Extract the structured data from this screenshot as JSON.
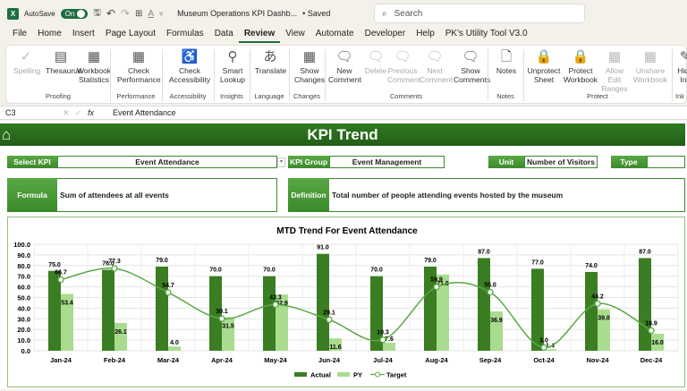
{
  "titlebar": {
    "autosave": "AutoSave",
    "toggle": "On",
    "filename": "Museum Operations KPI Dashb...",
    "saved": "• Saved",
    "search_placeholder": "Search"
  },
  "tabs": [
    "File",
    "Home",
    "Insert",
    "Page Layout",
    "Formulas",
    "Data",
    "Review",
    "View",
    "Automate",
    "Developer",
    "Help",
    "PK's Utility Tool V3.0"
  ],
  "active_tab": "Review",
  "ribbon": {
    "buttons": [
      {
        "label": "Spelling",
        "icon": "spelling-icon",
        "disabled": true
      },
      {
        "label": "Thesaurus",
        "icon": "thesaurus-icon"
      },
      {
        "label": "Workbook Statistics",
        "icon": "statistics-icon"
      },
      {
        "label": "Check Performance",
        "icon": "performance-icon"
      },
      {
        "label": "Check Accessibility",
        "icon": "accessibility-icon"
      },
      {
        "label": "Smart Lookup",
        "icon": "lookup-icon"
      },
      {
        "label": "Translate",
        "icon": "translate-icon"
      },
      {
        "label": "Show Changes",
        "icon": "changes-icon"
      },
      {
        "label": "New Comment",
        "icon": "new-comment-icon"
      },
      {
        "label": "Delete",
        "icon": "delete-comment-icon",
        "disabled": true
      },
      {
        "label": "Previous Comment",
        "icon": "previous-comment-icon",
        "disabled": true
      },
      {
        "label": "Next Comment",
        "icon": "next-comment-icon",
        "disabled": true
      },
      {
        "label": "Show Comments",
        "icon": "show-comments-icon"
      },
      {
        "label": "Notes",
        "icon": "notes-icon"
      },
      {
        "label": "Unprotect Sheet",
        "icon": "unprotect-sheet-icon"
      },
      {
        "label": "Protect Workbook",
        "icon": "protect-workbook-icon"
      },
      {
        "label": "Allow Edit Ranges",
        "icon": "allow-edit-icon",
        "disabled": true
      },
      {
        "label": "Unshare Workbook",
        "icon": "unshare-icon",
        "disabled": true
      },
      {
        "label": "Hide Ink",
        "icon": "ink-icon"
      }
    ],
    "groups": [
      "Proofing",
      "Performance",
      "Accessibility",
      "Insights",
      "Language",
      "Changes",
      "Comments",
      "Notes",
      "Protect",
      "Ink"
    ]
  },
  "formula_bar": {
    "cell": "C3",
    "fx": "fx",
    "value": "Event Attendance"
  },
  "dashboard": {
    "title": "KPI Trend",
    "select_kpi_label": "Select KPI",
    "select_kpi_value": "Event Attendance",
    "kpi_group_label": "KPI Group",
    "kpi_group_value": "Event Management",
    "unit_label": "Unit",
    "unit_value": "Number of Visitors",
    "type_label": "Type",
    "type_value": "",
    "formula_label": "Formula",
    "formula_value": "Sum of attendees at all events",
    "definition_label": "Definition",
    "definition_value": "Total number of people attending events hosted by the museum"
  },
  "colors": {
    "actual": "#3a7d22",
    "py": "#a9dc8f",
    "target": "#5aa845",
    "banner": "#2a6c1c"
  },
  "chart_data": {
    "type": "bar",
    "title": "MTD Trend For Event Attendance",
    "categories": [
      "Jan-24",
      "Feb-24",
      "Mar-24",
      "Apr-24",
      "May-24",
      "Jun-24",
      "Jul-24",
      "Aug-24",
      "Sep-24",
      "Oct-24",
      "Nov-24",
      "Dec-24"
    ],
    "ylim": [
      0,
      100
    ],
    "yticks": [
      "0.0",
      "10.0",
      "20.0",
      "30.0",
      "40.0",
      "50.0",
      "60.0",
      "70.0",
      "80.0",
      "90.0",
      "100.0"
    ],
    "grid": true,
    "legend": "bottom",
    "series": [
      {
        "name": "Actual",
        "type": "bar",
        "values": [
          75.0,
          76.0,
          79.0,
          70.0,
          70.0,
          91.0,
          70.0,
          79.0,
          87.0,
          77.0,
          74.0,
          87.0
        ]
      },
      {
        "name": "PY",
        "type": "bar",
        "values": [
          53.4,
          26.1,
          4.0,
          31.5,
          52.9,
          11.6,
          7.6,
          71.6,
          36.9,
          1.4,
          39.0,
          16.0
        ]
      },
      {
        "name": "Target",
        "type": "line",
        "values": [
          66.7,
          77.3,
          54.7,
          30.1,
          43.3,
          29.1,
          10.3,
          59.9,
          55.0,
          3.0,
          44.2,
          18.9
        ]
      }
    ]
  }
}
